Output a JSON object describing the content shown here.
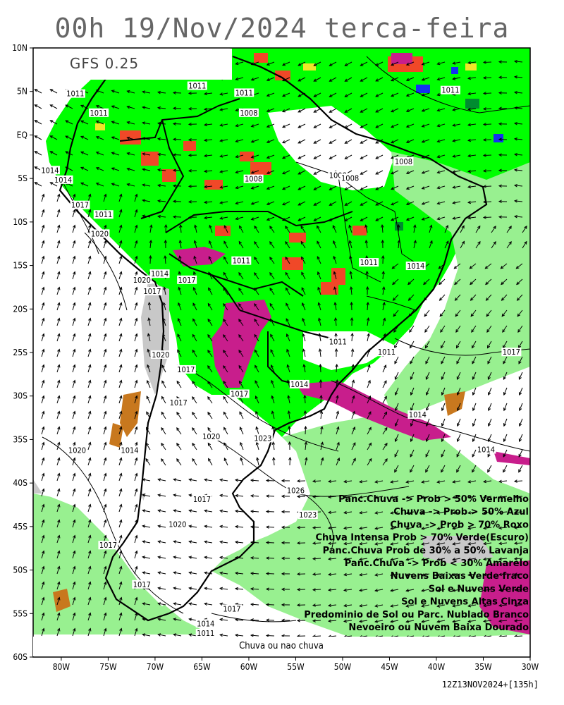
{
  "title": "00h 19/Nov/2024 terca-feira",
  "model_label": "GFS 0.25",
  "bottom_label": "Chuva ou nao chuva",
  "run_label": "12Z13NOV2024+[135h]",
  "lat_labels": [
    "10N",
    "5N",
    "EQ",
    "5S",
    "10S",
    "15S",
    "20S",
    "25S",
    "30S",
    "35S",
    "40S",
    "45S",
    "50S",
    "55S",
    "60S"
  ],
  "lon_labels": [
    "80W",
    "75W",
    "70W",
    "65W",
    "60W",
    "55W",
    "50W",
    "45W",
    "40W",
    "35W",
    "30W"
  ],
  "legend": [
    "Panc.Chuva -> Prob > 50% Vermelho",
    "Chuva -> Prob > 50% Azul",
    "Chuva -> Prob > 70% Roxo",
    "Chuva Intensa Prob > 70% Verde(Escuro)",
    "Panc.Chuva Prob de 30% a 50% Lavanja",
    "Panc.Chuva -> Prob < 30% Amarelo",
    "Nuvens Baixas Verde fraco",
    "Sol e Nuvens Verde",
    "Sol e Nuvens Altas Cinza",
    "Predominio de Sol ou Parc. Nublado Branco",
    "Nevoeiro ou Nuvem Baixa Dourado"
  ],
  "isobar_labels": [
    {
      "text": "1011",
      "lon": -78.5,
      "lat": 4.6
    },
    {
      "text": "1011",
      "lon": -76.0,
      "lat": 2.4
    },
    {
      "text": "1011",
      "lon": -65.5,
      "lat": 5.5
    },
    {
      "text": "1011",
      "lon": -60.5,
      "lat": 4.7
    },
    {
      "text": "1008",
      "lon": -60.0,
      "lat": 2.4
    },
    {
      "text": "1011",
      "lon": -38.5,
      "lat": 5.0
    },
    {
      "text": "1008",
      "lon": -43.5,
      "lat": -3.2
    },
    {
      "text": "1008",
      "lon": -50.5,
      "lat": -4.8
    },
    {
      "text": "1008",
      "lon": -49.2,
      "lat": -5.1
    },
    {
      "text": "1008",
      "lon": -59.5,
      "lat": -5.2
    },
    {
      "text": "1014",
      "lon": -81.2,
      "lat": -4.2
    },
    {
      "text": "1014",
      "lon": -79.8,
      "lat": -5.3
    },
    {
      "text": "1017",
      "lon": -78.0,
      "lat": -8.2
    },
    {
      "text": "1011",
      "lon": -75.5,
      "lat": -9.3
    },
    {
      "text": "1020",
      "lon": -75.9,
      "lat": -11.5
    },
    {
      "text": "1011",
      "lon": -60.8,
      "lat": -14.6
    },
    {
      "text": "1011",
      "lon": -47.2,
      "lat": -14.8
    },
    {
      "text": "1014",
      "lon": -42.2,
      "lat": -15.2
    },
    {
      "text": "1014",
      "lon": -69.5,
      "lat": -16.1
    },
    {
      "text": "1017",
      "lon": -66.6,
      "lat": -16.8
    },
    {
      "text": "1020",
      "lon": -71.4,
      "lat": -16.8
    },
    {
      "text": "1017",
      "lon": -70.3,
      "lat": -18.1
    },
    {
      "text": "1011",
      "lon": -50.5,
      "lat": -23.9
    },
    {
      "text": "1011",
      "lon": -45.3,
      "lat": -25.1
    },
    {
      "text": "1017",
      "lon": -32.0,
      "lat": -25.1
    },
    {
      "text": "1020",
      "lon": -69.4,
      "lat": -25.4
    },
    {
      "text": "1017",
      "lon": -66.7,
      "lat": -27.1
    },
    {
      "text": "1014",
      "lon": -54.6,
      "lat": -28.8
    },
    {
      "text": "1017",
      "lon": -61.0,
      "lat": -29.9
    },
    {
      "text": "1017",
      "lon": -67.5,
      "lat": -30.9
    },
    {
      "text": "1014",
      "lon": -42.0,
      "lat": -32.3
    },
    {
      "text": "1020",
      "lon": -78.3,
      "lat": -36.4
    },
    {
      "text": "1014",
      "lon": -72.7,
      "lat": -36.4
    },
    {
      "text": "1020",
      "lon": -64.0,
      "lat": -34.8
    },
    {
      "text": "1023",
      "lon": -58.5,
      "lat": -35.0
    },
    {
      "text": "1014",
      "lon": -34.7,
      "lat": -36.3
    },
    {
      "text": "1026",
      "lon": -55.0,
      "lat": -41.0
    },
    {
      "text": "1017",
      "lon": -65.0,
      "lat": -42.0
    },
    {
      "text": "1023",
      "lon": -53.7,
      "lat": -43.8
    },
    {
      "text": "1020",
      "lon": -67.6,
      "lat": -44.9
    },
    {
      "text": "1017",
      "lon": -75.0,
      "lat": -47.3
    },
    {
      "text": "1017",
      "lon": -71.4,
      "lat": -51.8
    },
    {
      "text": "1017",
      "lon": -61.8,
      "lat": -54.6
    },
    {
      "text": "1014",
      "lon": -64.6,
      "lat": -56.3
    },
    {
      "text": "1011",
      "lon": -64.6,
      "lat": -57.4
    }
  ],
  "colors": {
    "green": "#00ff00",
    "light_green": "#98f090",
    "gray": "#c8c8c8",
    "white": "#ffffff",
    "red": "#f04828",
    "blue": "#1432f0",
    "purple": "#c81e8c",
    "dark_green": "#008c30",
    "lavender": "#e0b0e0",
    "yellow": "#f0e628",
    "gold": "#c8781e"
  }
}
